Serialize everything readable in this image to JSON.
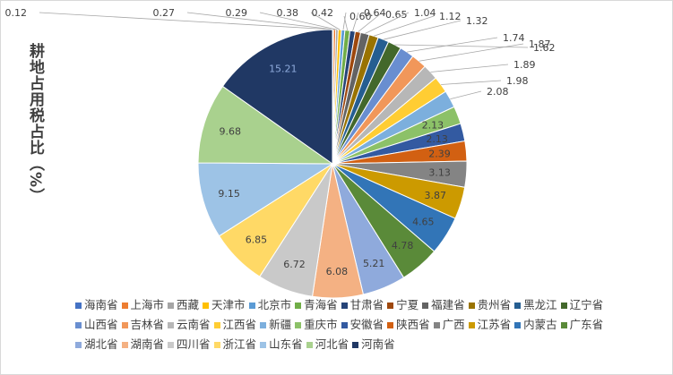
{
  "chart_data": {
    "type": "pie",
    "ylabel": "耕地占用税占比（%）",
    "categories": [
      "海南省",
      "上海市",
      "西藏",
      "天津市",
      "北京市",
      "青海省",
      "甘肃省",
      "宁夏",
      "福建省",
      "贵州省",
      "黑龙江",
      "辽宁省",
      "山西省",
      "吉林省",
      "云南省",
      "江西省",
      "新疆",
      "重庆市",
      "安徽省",
      "陕西省",
      "广西",
      "江苏省",
      "内蒙古",
      "广东省",
      "湖北省",
      "湖南省",
      "四川省",
      "浙江省",
      "山东省",
      "河北省",
      "河南省"
    ],
    "values": [
      0.12,
      0.27,
      0.29,
      0.38,
      0.42,
      0.6,
      0.64,
      0.65,
      1.04,
      1.12,
      1.32,
      1.62,
      1.74,
      1.87,
      1.89,
      1.98,
      2.08,
      2.13,
      2.13,
      2.39,
      3.13,
      3.87,
      4.65,
      4.78,
      5.21,
      6.08,
      6.72,
      6.85,
      9.15,
      9.68,
      15.21
    ],
    "value_labels": [
      "0.12",
      "0.27",
      "0.29",
      "0.38",
      "0.42",
      "0.60",
      "0.64",
      "0.65",
      "1.04",
      "1.12",
      "1.32",
      "1.62",
      "1.74",
      "1.87",
      "1.89",
      "1.98",
      "2.08",
      "2.13",
      "2.13",
      "2.39",
      "3.13",
      "3.87",
      "4.65",
      "4.78",
      "5.21",
      "6.08",
      "6.72",
      "6.85",
      "9.15",
      "9.68",
      "15.21"
    ],
    "colors": [
      "#4472C4",
      "#ED7D31",
      "#A5A5A5",
      "#FFC000",
      "#5B9BD5",
      "#70AD47",
      "#264478",
      "#9E480E",
      "#636363",
      "#997300",
      "#255E91",
      "#43682B",
      "#698ED0",
      "#F1975A",
      "#B7B7B7",
      "#FFCD33",
      "#7CAFDD",
      "#8CC168",
      "#335AA1",
      "#D26012",
      "#848484",
      "#CC9A00",
      "#3275B7",
      "#5A8A39",
      "#8FAADC",
      "#F4B183",
      "#C9C9C9",
      "#FFD966",
      "#9DC3E6",
      "#A9D18E",
      "#203864"
    ],
    "legend_position": "bottom"
  }
}
